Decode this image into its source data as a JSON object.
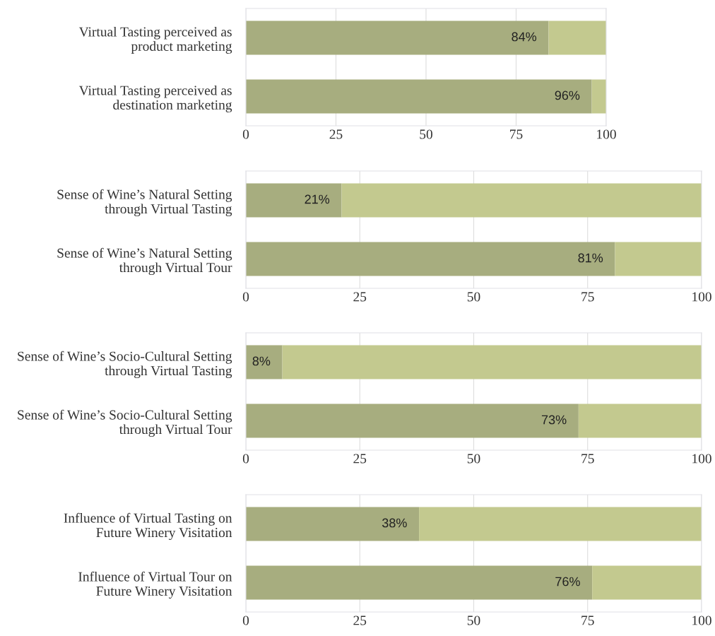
{
  "chart_data": [
    {
      "type": "bar",
      "orientation": "horizontal",
      "stacked": true,
      "categories": [
        "Virtual Tasting perceived as\nproduct marketing",
        "Virtual Tasting perceived as\ndestination marketing"
      ],
      "series": [
        {
          "color": "#a7ad7f",
          "values": [
            84,
            96
          ],
          "value_labels": [
            "84%",
            "96%"
          ]
        },
        {
          "color": "#c3c98f",
          "values": [
            16,
            4
          ]
        }
      ],
      "xlim": [
        0,
        100
      ],
      "xticks": [
        0,
        25,
        50,
        75,
        100
      ],
      "grid": "x"
    },
    {
      "type": "bar",
      "orientation": "horizontal",
      "stacked": true,
      "categories": [
        "Sense of Wine’s Natural Setting\nthrough Virtual Tasting",
        "Sense of Wine’s Natural Setting\nthrough Virtual Tour"
      ],
      "series": [
        {
          "color": "#a7ad7f",
          "values": [
            21,
            81
          ],
          "value_labels": [
            "21%",
            "81%"
          ]
        },
        {
          "color": "#c3c98f",
          "values": [
            79,
            19
          ]
        }
      ],
      "xlim": [
        0,
        100
      ],
      "xticks": [
        0,
        25,
        50,
        75,
        100
      ],
      "grid": "x"
    },
    {
      "type": "bar",
      "orientation": "horizontal",
      "stacked": true,
      "categories": [
        "Sense of Wine’s Socio-Cultural Setting\nthrough Virtual Tasting",
        "Sense of Wine’s Socio-Cultural Setting\nthrough Virtual Tour"
      ],
      "series": [
        {
          "color": "#a7ad7f",
          "values": [
            8,
            73
          ],
          "value_labels": [
            "8%",
            "73%"
          ]
        },
        {
          "color": "#c3c98f",
          "values": [
            92,
            27
          ]
        }
      ],
      "xlim": [
        0,
        100
      ],
      "xticks": [
        0,
        25,
        50,
        75,
        100
      ],
      "grid": "x"
    },
    {
      "type": "bar",
      "orientation": "horizontal",
      "stacked": true,
      "categories": [
        "Influence of Virtual Tasting on\nFuture Winery Visitation",
        "Influence of Virtual Tour on\nFuture Winery Visitation"
      ],
      "series": [
        {
          "color": "#a7ad7f",
          "values": [
            38,
            76
          ],
          "value_labels": [
            "38%",
            "76%"
          ]
        },
        {
          "color": "#c3c98f",
          "values": [
            62,
            24
          ]
        }
      ],
      "xlim": [
        0,
        100
      ],
      "xticks": [
        0,
        25,
        50,
        75,
        100
      ],
      "grid": "x"
    }
  ]
}
